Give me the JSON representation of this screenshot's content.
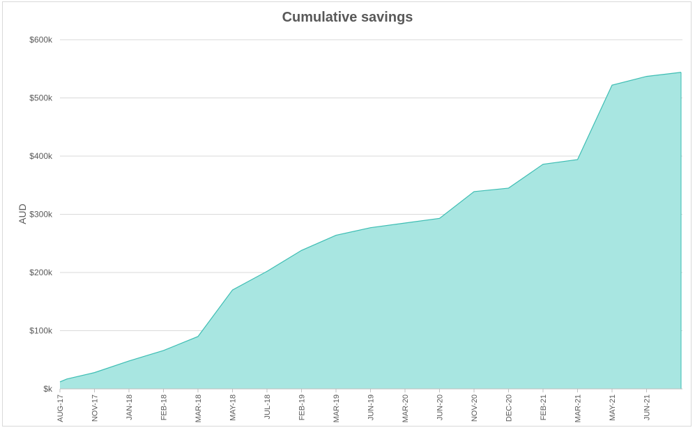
{
  "chart_data": {
    "type": "area",
    "title": "Cumulative savings",
    "ylabel": "AUD",
    "xlabel": "",
    "ylim": [
      0,
      600000
    ],
    "y_ticks": [
      0,
      100000,
      200000,
      300000,
      400000,
      500000,
      600000
    ],
    "y_tick_labels": [
      "$k",
      "$100k",
      "$200k",
      "$300k",
      "$400k",
      "$500k",
      "$600k"
    ],
    "grid": true,
    "color": "#a8e6e1",
    "line_color": "#3dbdb3",
    "x_tick_labels": [
      "AUG-17",
      "NOV-17",
      "JAN-18",
      "FEB-18",
      "MAR-18",
      "MAY-18",
      "JUL-18",
      "FEB-19",
      "MAR-19",
      "JUN-19",
      "MAR-20",
      "JUN-20",
      "NOV-20",
      "DEC-20",
      "FEB-21",
      "MAR-21",
      "MAY-21",
      "JUN-21"
    ],
    "series": [
      {
        "values": [
          12000,
          17000,
          28000,
          48000,
          66000,
          90000,
          170000,
          202000,
          238000,
          264000,
          277000,
          285000,
          293000,
          339000,
          345000,
          386000,
          394000,
          522000,
          537000,
          544000
        ],
        "point_index": [
          0,
          0.2,
          1,
          2,
          3,
          4,
          5,
          6,
          7,
          8,
          9,
          10,
          11,
          12,
          13,
          14,
          15,
          16,
          17,
          18
        ]
      }
    ]
  }
}
